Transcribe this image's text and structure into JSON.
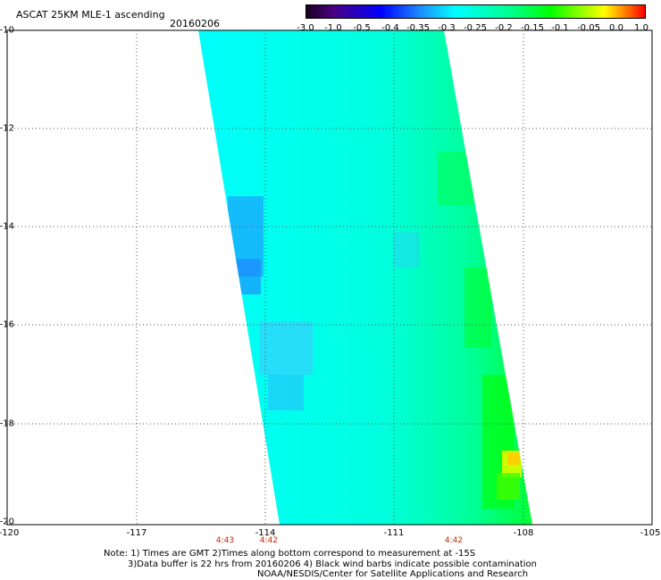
{
  "title": "ASCAT 25KM MLE-1 ascending",
  "date": "20160206",
  "colorbar": {
    "labels": [
      "-3.0",
      "-1.0",
      "-0.5",
      "-0.4",
      "-0.35",
      "-0.3",
      "-0.25",
      "-0.2",
      "-0.15",
      "-0.1",
      "-0.05",
      "0.0",
      "1.0"
    ]
  },
  "y_axis": {
    "labels": [
      "-10",
      "-12",
      "-14",
      "-16",
      "-18",
      "-20"
    ]
  },
  "x_axis": {
    "labels": [
      "-120",
      "-117",
      "-114",
      "-111",
      "-108",
      "-105"
    ]
  },
  "times": [
    {
      "text": "4:43",
      "lon": -115.3
    },
    {
      "text": "4:42",
      "lon": -114.0
    },
    {
      "text": "4:42",
      "lon": -109.6
    }
  ],
  "notes": {
    "line1": "Note: 1) Times are GMT 2)Times along bottom correspond to measurement at -15S",
    "line2": "3)Data buffer is 22 hrs from 20160206 4) Black wind barbs indicate possible contamination",
    "line3": "NOAA/NESDIS/Center for Satellite Applications and Research"
  },
  "map_extent": {
    "lon": [
      -120,
      -105
    ],
    "lat": [
      -20,
      -10
    ]
  },
  "swath": {
    "description_colors": [
      "#00ffff",
      "#00ffcc",
      "#00ff99",
      "#00ff55",
      "#00ff00"
    ]
  }
}
